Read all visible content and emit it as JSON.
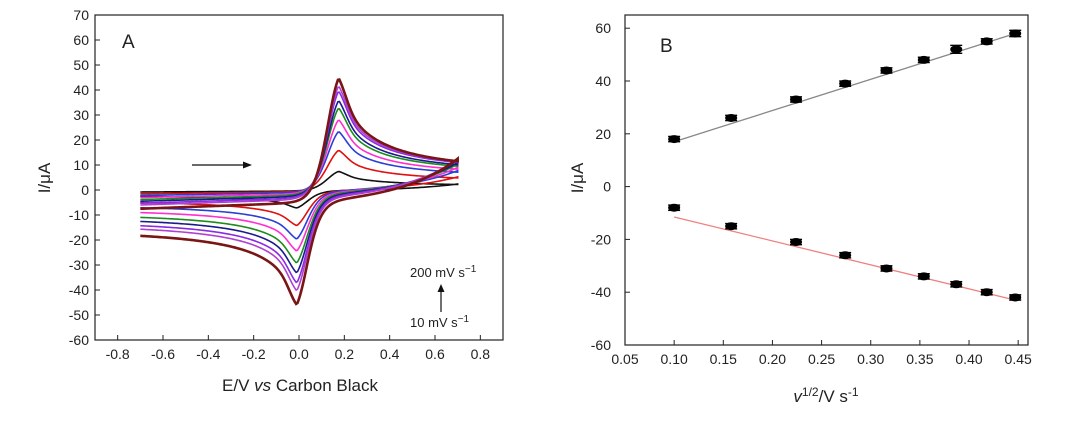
{
  "chart_data": [
    {
      "type": "line",
      "panel_label": "A",
      "xlabel_main": "E/V ",
      "xlabel_italic": "vs",
      "xlabel_rest": " Carbon Black",
      "ylabel": "I/μA",
      "xlim": [
        -0.9,
        0.9
      ],
      "ylim": [
        -60,
        70
      ],
      "xticks": [
        "-0.8",
        "-0.6",
        "-0.4",
        "-0.2",
        "0.0",
        "0.2",
        "0.4",
        "0.6",
        "0.8"
      ],
      "yticks": [
        "-60",
        "-50",
        "-40",
        "-30",
        "-20",
        "-10",
        "0",
        "10",
        "20",
        "30",
        "40",
        "50",
        "60",
        "70"
      ],
      "annotation_top": "200 mV s",
      "annotation_top_sup": "−1",
      "annotation_bottom": "10 mV s",
      "annotation_bottom_sup": "−1",
      "scan_direction": "positive (left to right arrow)",
      "series": [
        {
          "color": "#111111",
          "anodic_peak": 9,
          "cathodic_peak": -8,
          "E_start": -0.7,
          "E_switch": 0.7,
          "i_start": -0.8
        },
        {
          "color": "#e01010",
          "anodic_peak": 19,
          "cathodic_peak": -16,
          "E_start": -0.7,
          "E_switch": 0.7,
          "i_start": -1.5
        },
        {
          "color": "#2a3fd6",
          "anodic_peak": 28,
          "cathodic_peak": -22,
          "E_start": -0.7,
          "E_switch": 0.7,
          "i_start": -2.2
        },
        {
          "color": "#ff2fd0",
          "anodic_peak": 34,
          "cathodic_peak": -27,
          "E_start": -0.7,
          "E_switch": 0.7,
          "i_start": -3.0
        },
        {
          "color": "#1c8c1c",
          "anodic_peak": 40,
          "cathodic_peak": -32,
          "E_start": -0.7,
          "E_switch": 0.7,
          "i_start": -3.8
        },
        {
          "color": "#1a1a8c",
          "anodic_peak": 44,
          "cathodic_peak": -36,
          "E_start": -0.7,
          "E_switch": 0.7,
          "i_start": -4.5
        },
        {
          "color": "#8a2be2",
          "anodic_peak": 49,
          "cathodic_peak": -40,
          "E_start": -0.7,
          "E_switch": 0.7,
          "i_start": -5.3
        },
        {
          "color": "#b040d0",
          "anodic_peak": 52,
          "cathodic_peak": -43,
          "E_start": -0.7,
          "E_switch": 0.7,
          "i_start": -6.0
        },
        {
          "color": "#7a1515",
          "anodic_peak": 57,
          "cathodic_peak": -48,
          "E_start": -0.7,
          "E_switch": 0.7,
          "i_start": -7.5
        }
      ]
    },
    {
      "type": "scatter",
      "panel_label": "B",
      "xlabel_base": "v",
      "xlabel_sup": "1/2",
      "xlabel_unit": "/V s",
      "xlabel_unit_sup": "-1",
      "ylabel": "I/μA",
      "xlim": [
        0.05,
        0.46
      ],
      "ylim": [
        -60,
        65
      ],
      "xticks": [
        "0.05",
        "0.10",
        "0.15",
        "0.20",
        "0.25",
        "0.30",
        "0.35",
        "0.40",
        "0.45"
      ],
      "yticks": [
        "-60",
        "-40",
        "-20",
        "0",
        "20",
        "40",
        "60"
      ],
      "x": [
        0.1,
        0.158,
        0.224,
        0.274,
        0.316,
        0.354,
        0.387,
        0.418,
        0.447
      ],
      "series": [
        {
          "name_hidden": "anodic",
          "values": [
            18,
            26,
            33,
            39,
            44,
            48,
            52,
            55,
            58
          ],
          "error": [
            1,
            1,
            1,
            1,
            1,
            1,
            1.5,
            1,
            1.2
          ],
          "fit_color": "#888888",
          "fit": [
            [
              0.1,
              17
            ],
            [
              0.447,
              58
            ]
          ]
        },
        {
          "name_hidden": "cathodic",
          "values": [
            -8,
            -15,
            -21,
            -26,
            -31,
            -34,
            -37,
            -40,
            -42
          ],
          "error": [
            1,
            1,
            1,
            1,
            1,
            1,
            1,
            1,
            1
          ],
          "fit_color": "#f08080",
          "fit": [
            [
              0.1,
              -11.5
            ],
            [
              0.447,
              -43
            ]
          ]
        }
      ]
    }
  ]
}
